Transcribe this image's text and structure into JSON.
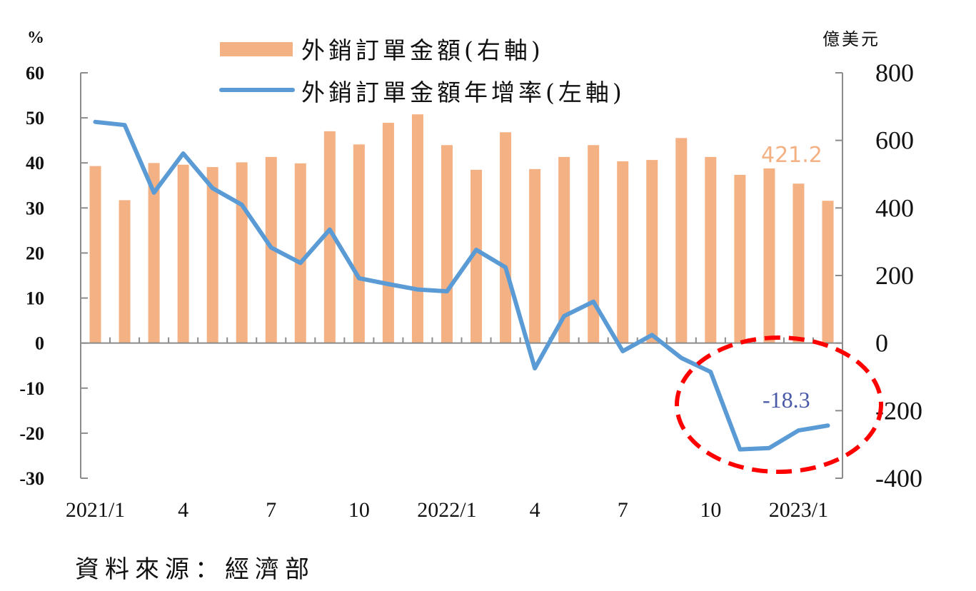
{
  "chart_data": {
    "type": "bar+line",
    "title": "",
    "categories": [
      "2021/1",
      "2021/2",
      "2021/3",
      "2021/4",
      "2021/5",
      "2021/6",
      "2021/7",
      "2021/8",
      "2021/9",
      "2021/10",
      "2021/11",
      "2021/12",
      "2022/1",
      "2022/2",
      "2022/3",
      "2022/4",
      "2022/5",
      "2022/6",
      "2022/7",
      "2022/8",
      "2022/9",
      "2022/10",
      "2022/11",
      "2022/12",
      "2023/1",
      "2023/2"
    ],
    "x_tick_labels": [
      {
        "index": 0,
        "label": "2021/1"
      },
      {
        "index": 3,
        "label": "4"
      },
      {
        "index": 6,
        "label": "7"
      },
      {
        "index": 9,
        "label": "10"
      },
      {
        "index": 12,
        "label": "2022/1"
      },
      {
        "index": 15,
        "label": "4"
      },
      {
        "index": 18,
        "label": "7"
      },
      {
        "index": 21,
        "label": "10"
      },
      {
        "index": 24,
        "label": "2023/1"
      }
    ],
    "series": [
      {
        "name": "外銷訂單金額(右軸)",
        "type": "bar",
        "axis": "right",
        "color": "#f4b183",
        "values": [
          524,
          423,
          533,
          528,
          521,
          535,
          551,
          532,
          627,
          588,
          652,
          677,
          586,
          513,
          624,
          515,
          551,
          586,
          538,
          542,
          607,
          551,
          498,
          517,
          472,
          421.2
        ]
      },
      {
        "name": "外銷訂單金額年增率(左軸)",
        "type": "line",
        "axis": "left",
        "color": "#5b9bd5",
        "values": [
          49.1,
          48.4,
          33.4,
          42.1,
          34.4,
          30.7,
          21.2,
          17.8,
          25.2,
          14.4,
          13.1,
          11.9,
          11.5,
          20.7,
          16.8,
          -5.6,
          6.0,
          9.2,
          -1.8,
          1.8,
          -3.3,
          -6.4,
          -23.6,
          -23.3,
          -19.4,
          -18.3
        ]
      }
    ],
    "left_axis": {
      "unit": "%",
      "min": -30,
      "max": 60,
      "ticks": [
        60,
        50,
        40,
        30,
        20,
        10,
        0,
        -10,
        -20,
        -30
      ]
    },
    "right_axis": {
      "unit": "億美元",
      "min": -400,
      "max": 800,
      "ticks": [
        800,
        600,
        400,
        200,
        0,
        -200,
        -400
      ]
    },
    "annotations": [
      {
        "text": "421.2",
        "series": "外銷訂單金額(右軸)",
        "index": 25,
        "color": "#f4b183"
      },
      {
        "text": "-18.3",
        "series": "外銷訂單金額年增率(左軸)",
        "index": 25,
        "color": "#4a5aa8"
      },
      {
        "shape": "dashed-ellipse",
        "color": "#ff0000",
        "highlights": "2022/11 – 2023/2"
      }
    ],
    "legend_position": "top-center",
    "grid": false,
    "source": "資料來源：經濟部"
  },
  "labels": {
    "left_unit": "%",
    "right_unit": "億美元",
    "legend_bar": "外銷訂單金額(右軸)",
    "legend_line": "外銷訂單金額年增率(左軸)",
    "annotation_bar": "421.2",
    "annotation_line": "-18.3",
    "source": "資料來源：經濟部"
  }
}
